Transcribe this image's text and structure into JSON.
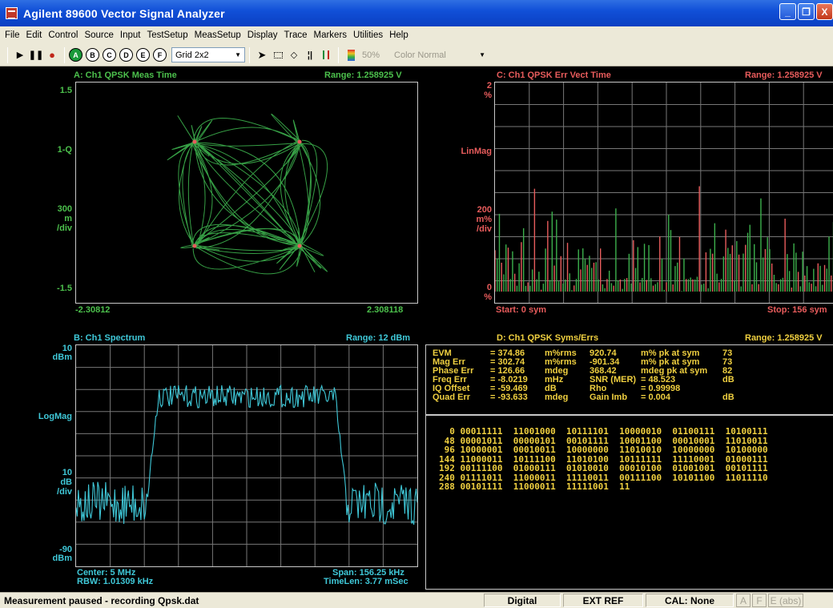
{
  "window": {
    "title": "Agilent 89600 Vector Signal Analyzer",
    "buttons": {
      "minimize": "_",
      "restore": "❐",
      "close": "X"
    }
  },
  "menu": [
    "File",
    "Edit",
    "Control",
    "Source",
    "Input",
    "TestSetup",
    "MeasSetup",
    "Display",
    "Trace",
    "Markers",
    "Utilities",
    "Help"
  ],
  "toolbar": {
    "traces": [
      "A",
      "B",
      "C",
      "D",
      "E",
      "F"
    ],
    "layout": "Grid 2x2",
    "percent": "50%",
    "color_mode": "Color Normal"
  },
  "panels": {
    "A": {
      "title": "A: Ch1 QPSK Meas Time",
      "range": "Range: 1.258925  V",
      "y_top": "1.5",
      "y_mid": "1-Q",
      "scale": [
        "300",
        "m",
        "/div"
      ],
      "y_bottom": "-1.5",
      "x_left": "-2.30812",
      "x_right": "2.308118"
    },
    "B": {
      "title": "B: Ch1 Spectrum",
      "range": "Range: 12 dBm",
      "y_top": [
        "10",
        "dBm"
      ],
      "y_mid": "LogMag",
      "scale": [
        "10",
        "dB",
        "/div"
      ],
      "y_bottom": [
        "-90",
        "dBm"
      ],
      "center": "Center: 5 MHz",
      "rbw": "RBW: 1.01309 kHz",
      "span": "Span: 156.25 kHz",
      "timelen": "TimeLen: 3.77 mSec"
    },
    "C": {
      "title": "C: Ch1 QPSK Err Vect Time",
      "range": "Range: 1.258925  V",
      "y_top": [
        "2",
        "%"
      ],
      "y_mid": "LinMag",
      "scale": [
        "200",
        "m%",
        "/div"
      ],
      "y_bottom": [
        "0",
        "%"
      ],
      "start": "Start: 0  sym",
      "stop": "Stop: 156  sym"
    },
    "D": {
      "title": "D: Ch1 QPSK Syms/Errs",
      "range": "Range: 1.258925  V",
      "errors": [
        [
          "EVM",
          "= 374.86",
          "m%rms",
          "920.74",
          "m% pk  at  sym",
          "73"
        ],
        [
          "Mag Err",
          "= 302.74",
          "m%rms",
          "-901.34",
          "m% pk  at  sym",
          "73"
        ],
        [
          "Phase Err",
          "= 126.66",
          "mdeg",
          "368.42",
          "mdeg pk  at  sym",
          "82"
        ],
        [
          "Freq  Err",
          "= -8.0219",
          "mHz",
          "SNR (MER)",
          "= 48.523",
          "dB"
        ],
        [
          "IQ  Offset",
          "= -59.469",
          "dB",
          "Rho",
          "= 0.99998",
          ""
        ],
        [
          "Quad Err",
          "= -93.633",
          "mdeg",
          "Gain  Imb",
          "= 0.004",
          "dB"
        ]
      ],
      "symbols": [
        "  0 00011111  11001000  10111101  10000010  01100111  10100111",
        " 48 00001011  00000101  00101111  10001100  00010001  11010011",
        " 96 10000001  00010011  10000000  11010010  10000000  10100000",
        "144 11000011  10111100  11010100  10111111  11110001  01000111",
        "192 00111100  01000111  01010010  00010100  01001001  00101111",
        "240 01111011  11000011  11110011  00111100  10101100  11011110",
        "288 00101111  11000011  11111001  11"
      ]
    }
  },
  "status": {
    "message": "Measurement paused - recording Qpsk.dat",
    "mode": "Digital",
    "ref": "EXT REF",
    "cal": "CAL: None",
    "ind": [
      "A",
      "F",
      "E (abs)"
    ]
  },
  "colors": {
    "trace_green": "#3cb04c",
    "trace_red": "#e85c5c",
    "trace_cyan": "#3fc8d8",
    "text_yellow": "#f0d040"
  }
}
